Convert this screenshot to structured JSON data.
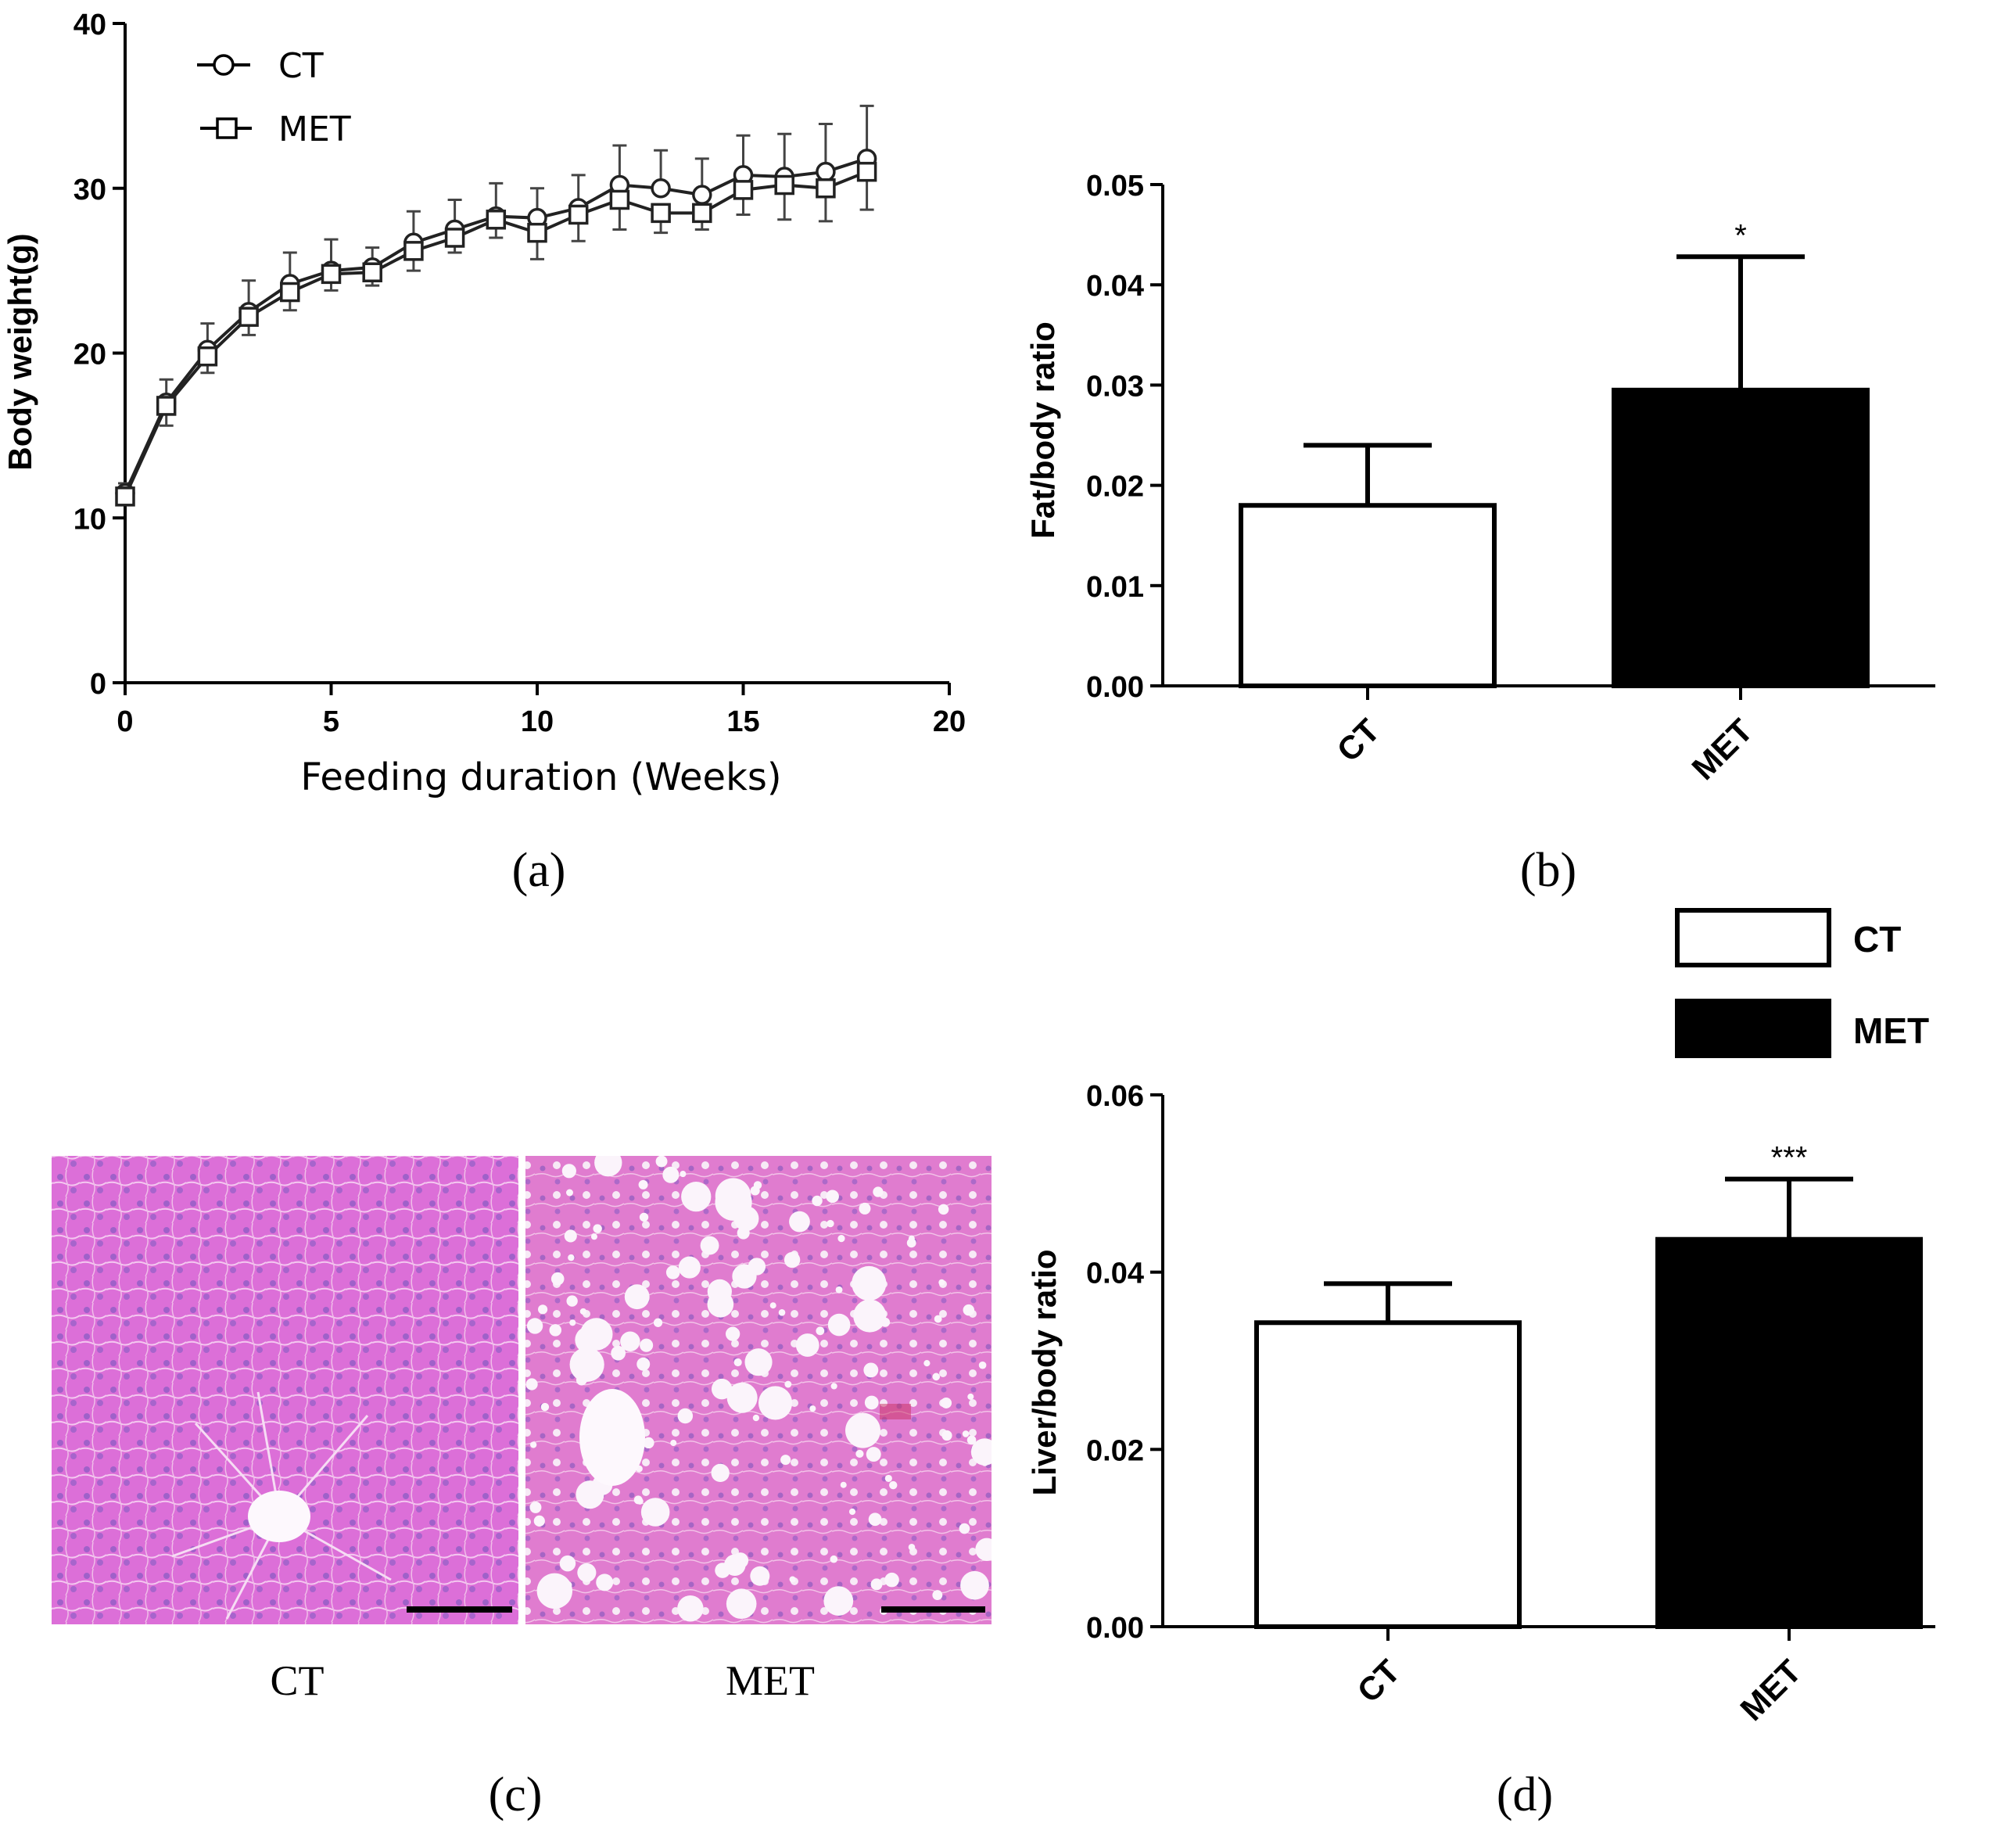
{
  "panel_labels": {
    "a": "(a)",
    "b": "(b)",
    "c": "(c)",
    "d": "(d)"
  },
  "colors": {
    "ct_bar": "#ffffff",
    "met_bar": "#000000",
    "axis": "#000000",
    "tissue": "#d86fd6",
    "tissue_met": "#e07fd2"
  },
  "histology": {
    "ct_label": "CT",
    "met_label": "MET"
  },
  "legend_bd": {
    "ct": "CT",
    "met": "MET"
  },
  "chart_data": [
    {
      "id": "a",
      "type": "line",
      "title": "",
      "xlabel": "Feeding duration (Weeks)",
      "ylabel": "Body weight(g)",
      "xlim": [
        0,
        20
      ],
      "ylim": [
        0,
        40
      ],
      "xticks": [
        0,
        5,
        10,
        15,
        20
      ],
      "yticks": [
        0,
        10,
        20,
        30,
        40
      ],
      "legend": "top-left",
      "x": [
        0,
        1,
        2,
        3,
        4,
        5,
        6,
        7,
        8,
        9,
        10,
        11,
        12,
        13,
        14,
        15,
        16,
        17,
        18
      ],
      "series": [
        {
          "name": "CT",
          "marker": "circle",
          "values": [
            11.5,
            17.0,
            20.2,
            22.5,
            24.2,
            25.0,
            25.2,
            26.7,
            27.5,
            28.3,
            28.2,
            28.8,
            30.2,
            30.0,
            29.6,
            30.8,
            30.7,
            31.0,
            31.8
          ],
          "errors": [
            0.6,
            1.4,
            1.6,
            1.9,
            1.9,
            1.9,
            1.2,
            1.9,
            1.8,
            2.0,
            1.8,
            2.0,
            2.4,
            2.3,
            2.2,
            2.4,
            2.6,
            2.9,
            3.2
          ]
        },
        {
          "name": "MET",
          "marker": "square",
          "values": [
            11.3,
            16.8,
            19.8,
            22.2,
            23.7,
            24.8,
            24.9,
            26.2,
            27.0,
            28.1,
            27.3,
            28.4,
            29.3,
            28.5,
            28.5,
            29.9,
            30.2,
            30.0,
            31.0
          ],
          "errors": [
            0.5,
            1.2,
            1.0,
            1.1,
            1.1,
            1.0,
            0.8,
            1.2,
            0.9,
            1.1,
            1.6,
            1.6,
            1.8,
            1.2,
            1.0,
            1.5,
            2.1,
            2.0,
            2.3
          ]
        }
      ]
    },
    {
      "id": "b",
      "type": "bar",
      "title": "",
      "xlabel": "",
      "ylabel": "Fat/body ratio",
      "categories": [
        "CT",
        "MET"
      ],
      "values": [
        0.018,
        0.0295
      ],
      "errors": [
        0.006,
        0.0133
      ],
      "significance": [
        "",
        "*"
      ],
      "ylim": [
        0,
        0.05
      ],
      "yticks": [
        "0.00",
        "0.01",
        "0.02",
        "0.03",
        "0.04",
        "0.05"
      ]
    },
    {
      "id": "d",
      "type": "bar",
      "title": "",
      "xlabel": "",
      "ylabel": "Liver/body ratio",
      "categories": [
        "CT",
        "MET"
      ],
      "values": [
        0.0343,
        0.0437
      ],
      "errors": [
        0.0044,
        0.0068
      ],
      "significance": [
        "",
        "***"
      ],
      "ylim": [
        0,
        0.06
      ],
      "yticks": [
        "0.00",
        "0.02",
        "0.04",
        "0.06"
      ],
      "legend": "top-right"
    }
  ]
}
